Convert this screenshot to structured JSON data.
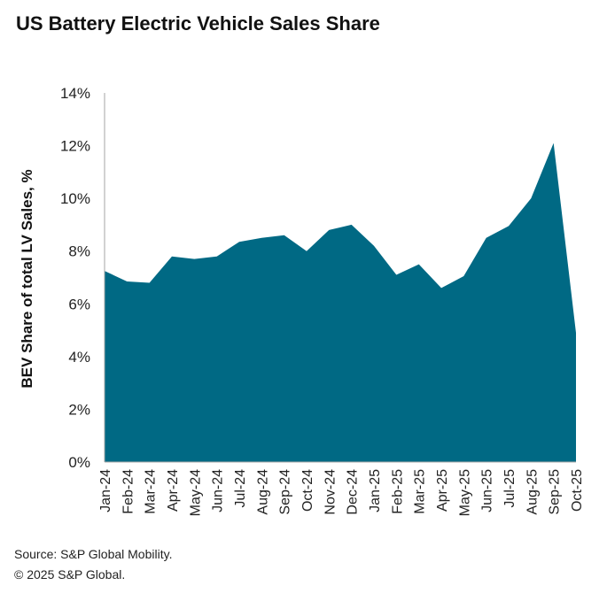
{
  "chart_data": {
    "type": "area",
    "title": "US Battery Electric Vehicle Sales Share",
    "xlabel": "",
    "ylabel": "BEV Share of total LV Sales, %",
    "ylim": [
      0,
      14
    ],
    "yticks": [
      0,
      2,
      4,
      6,
      8,
      10,
      12,
      14
    ],
    "ytick_labels": [
      "0%",
      "2%",
      "4%",
      "6%",
      "8%",
      "10%",
      "12%",
      "14%"
    ],
    "grid": false,
    "legend": "none",
    "fill_color": "#006984",
    "categories": [
      "Jan-24",
      "Feb-24",
      "Mar-24",
      "Apr-24",
      "May-24",
      "Jun-24",
      "Jul-24",
      "Aug-24",
      "Sep-24",
      "Oct-24",
      "Nov-24",
      "Dec-24",
      "Jan-25",
      "Feb-25",
      "Mar-25",
      "Apr-25",
      "May-25",
      "Jun-25",
      "Jul-25",
      "Aug-25",
      "Sep-25",
      "Oct-25"
    ],
    "series": [
      {
        "name": "BEV Share",
        "values": [
          7.25,
          6.85,
          6.8,
          7.8,
          7.7,
          7.8,
          8.35,
          8.5,
          8.6,
          8.0,
          8.8,
          9.0,
          8.2,
          7.1,
          7.5,
          6.6,
          7.05,
          8.5,
          8.95,
          10.0,
          12.1,
          4.9
        ]
      }
    ]
  },
  "footer": {
    "source": "Source: S&P Global Mobility.",
    "copyright": "© 2025 S&P Global."
  }
}
